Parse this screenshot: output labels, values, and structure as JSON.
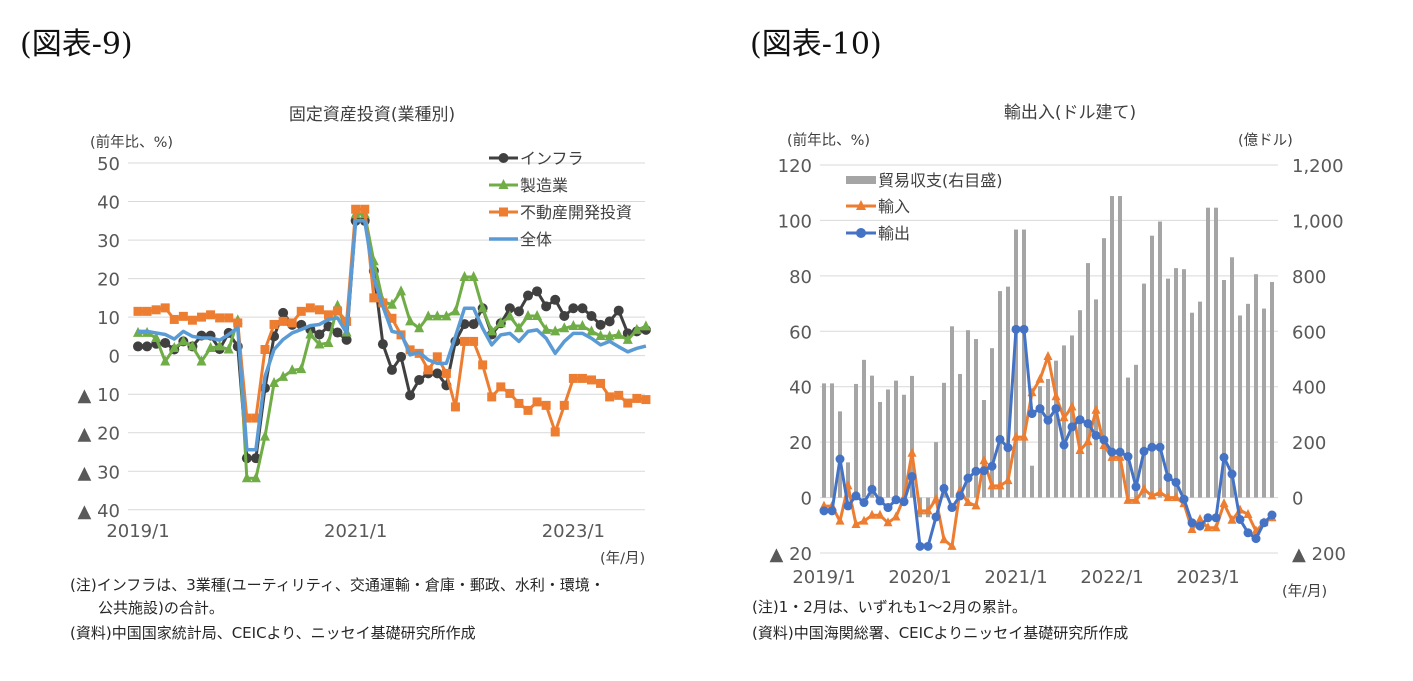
{
  "figures": [
    {
      "label": "(図表-9)",
      "unit_left": "(前年比、%)",
      "x_unit": "(年/月)",
      "notes": [
        "(注)インフラは、3業種(ユーティリティ、交通運輸・倉庫・郵政、水利・環境・",
        "公共施設)の合計。",
        "(資料)中国国家統計局、CEICより、ニッセイ基礎研究所作成"
      ]
    },
    {
      "label": "(図表-10)",
      "unit_left": "(前年比、%)",
      "unit_right": "(億ドル)",
      "x_unit": "(年/月)",
      "notes": [
        "(注)1・2月は、いずれも1～2月の累計。",
        "(資料)中国海関総署、CEICよりニッセイ基礎研究所作成"
      ]
    }
  ],
  "chart_data": [
    {
      "type": "line",
      "title": "固定資産投資(業種別)",
      "ylabel": "(前年比、%)",
      "xlabel": "(年/月)",
      "x_start": "2019/1",
      "x_end": "2023/9",
      "x": [
        "2019/1",
        "2019/2",
        "2019/3",
        "2019/4",
        "2019/5",
        "2019/6",
        "2019/7",
        "2019/8",
        "2019/9",
        "2019/10",
        "2019/11",
        "2019/12",
        "2020/1",
        "2020/2",
        "2020/3",
        "2020/4",
        "2020/5",
        "2020/6",
        "2020/7",
        "2020/8",
        "2020/9",
        "2020/10",
        "2020/11",
        "2020/12",
        "2021/1",
        "2021/2",
        "2021/3",
        "2021/4",
        "2021/5",
        "2021/6",
        "2021/7",
        "2021/8",
        "2021/9",
        "2021/10",
        "2021/11",
        "2021/12",
        "2022/1",
        "2022/2",
        "2022/3",
        "2022/4",
        "2022/5",
        "2022/6",
        "2022/7",
        "2022/8",
        "2022/9",
        "2022/10",
        "2022/11",
        "2022/12",
        "2023/1",
        "2023/2",
        "2023/3",
        "2023/4",
        "2023/5",
        "2023/6",
        "2023/7",
        "2023/8",
        "2023/9"
      ],
      "xtick_labels": [
        "2019/1",
        "2021/1",
        "2023/1"
      ],
      "xtick_index": [
        0,
        24,
        48
      ],
      "ylim": [
        -40,
        50
      ],
      "yticks": [
        50,
        40,
        30,
        20,
        10,
        0,
        -10,
        -20,
        -30,
        -40
      ],
      "ytick_labels": [
        "50",
        "40",
        "30",
        "20",
        "10",
        "0",
        "▲ 10",
        "▲ 20",
        "▲ 30",
        "▲ 40"
      ],
      "grid": true,
      "legend": "top-right",
      "series": [
        {
          "name": "インフラ",
          "color": "#404040",
          "marker": "circle",
          "values": [
            2.4,
            2.4,
            3.1,
            3.3,
            1.6,
            3.7,
            2.4,
            5.2,
            5.2,
            1.7,
            5.9,
            2.4,
            -26.6,
            -26.6,
            -8.4,
            5.0,
            11.1,
            8.0,
            8.0,
            6.8,
            5.5,
            7.6,
            6.0,
            4.1,
            35.0,
            35.0,
            22.0,
            3.0,
            -3.7,
            -0.3,
            -10.3,
            -6.3,
            -4.6,
            -4.6,
            -7.7,
            3.7,
            8.2,
            8.2,
            12.3,
            5.5,
            8.4,
            12.3,
            11.5,
            15.6,
            16.7,
            12.8,
            14.5,
            10.3,
            12.3,
            12.3,
            10.3,
            8.0,
            8.9,
            11.7,
            5.8,
            6.3,
            6.7
          ]
        },
        {
          "name": "製造業",
          "color": "#70AD47",
          "marker": "triangle",
          "values": [
            5.9,
            5.9,
            4.6,
            -1.5,
            2.0,
            3.7,
            2.4,
            -1.5,
            2.0,
            2.4,
            1.6,
            9.2,
            -31.8,
            -31.8,
            -21.0,
            -7.1,
            -5.5,
            -3.8,
            -3.5,
            5.5,
            2.9,
            3.3,
            13.0,
            6.0,
            36.7,
            36.7,
            24.5,
            14.1,
            13.2,
            16.7,
            8.9,
            7.1,
            10.2,
            10.2,
            10.2,
            11.5,
            20.4,
            20.4,
            12.3,
            6.3,
            8.4,
            10.2,
            7.1,
            10.3,
            10.3,
            6.7,
            6.3,
            7.1,
            7.7,
            7.7,
            6.3,
            5.1,
            5.0,
            5.4,
            4.1,
            6.7,
            7.6
          ]
        },
        {
          "name": "不動産開発投資",
          "color": "#ED7D31",
          "marker": "square",
          "values": [
            11.5,
            11.5,
            11.9,
            12.4,
            9.4,
            10.2,
            9.2,
            10.0,
            10.6,
            9.8,
            9.8,
            8.5,
            -16.2,
            -16.2,
            1.6,
            8.1,
            8.9,
            8.5,
            11.5,
            12.4,
            11.9,
            10.6,
            11.6,
            8.9,
            38.0,
            38.0,
            15.0,
            13.7,
            9.7,
            5.4,
            1.5,
            0.6,
            -3.7,
            -0.3,
            -4.6,
            -13.3,
            3.7,
            3.7,
            -2.4,
            -10.7,
            -8.1,
            -9.8,
            -12.4,
            -14.2,
            -12.0,
            -12.9,
            -19.8,
            -12.9,
            -5.9,
            -5.9,
            -6.3,
            -7.2,
            -10.7,
            -10.3,
            -12.3,
            -11.1,
            -11.4
          ]
        },
        {
          "name": "全体",
          "color": "#5B9BD5",
          "marker": "none",
          "values": [
            6.3,
            6.3,
            5.9,
            5.5,
            4.3,
            6.3,
            5.0,
            4.6,
            4.6,
            4.0,
            5.5,
            7.2,
            -24.4,
            -24.4,
            -5.4,
            1.6,
            4.2,
            5.9,
            6.8,
            7.8,
            8.1,
            9.4,
            9.8,
            5.9,
            35.0,
            35.0,
            20.2,
            12.8,
            6.3,
            5.8,
            0.2,
            0.9,
            -1.1,
            -2.0,
            -2.0,
            5.0,
            12.3,
            12.3,
            7.1,
            2.8,
            5.4,
            5.8,
            3.7,
            6.3,
            6.7,
            4.5,
            0.6,
            3.7,
            5.8,
            5.8,
            4.5,
            2.8,
            3.7,
            2.3,
            1.0,
            1.9,
            2.5
          ]
        }
      ]
    },
    {
      "type": "line",
      "title": "輸出入(ドル建て)",
      "ylabel": "(前年比、%)",
      "y2label": "(億ドル)",
      "xlabel": "(年/月)",
      "x_start": "2019/1",
      "x_end": "2023/9",
      "x": [
        "2019/1",
        "2019/2",
        "2019/3",
        "2019/4",
        "2019/5",
        "2019/6",
        "2019/7",
        "2019/8",
        "2019/9",
        "2019/10",
        "2019/11",
        "2019/12",
        "2020/1",
        "2020/2",
        "2020/3",
        "2020/4",
        "2020/5",
        "2020/6",
        "2020/7",
        "2020/8",
        "2020/9",
        "2020/10",
        "2020/11",
        "2020/12",
        "2021/1",
        "2021/2",
        "2021/3",
        "2021/4",
        "2021/5",
        "2021/6",
        "2021/7",
        "2021/8",
        "2021/9",
        "2021/10",
        "2021/11",
        "2021/12",
        "2022/1",
        "2022/2",
        "2022/3",
        "2022/4",
        "2022/5",
        "2022/6",
        "2022/7",
        "2022/8",
        "2022/9",
        "2022/10",
        "2022/11",
        "2022/12",
        "2023/1",
        "2023/2",
        "2023/3",
        "2023/4",
        "2023/5",
        "2023/6",
        "2023/7",
        "2023/8",
        "2023/9"
      ],
      "xtick_labels": [
        "2019/1",
        "2020/1",
        "2021/1",
        "2022/1",
        "2023/1"
      ],
      "xtick_index": [
        0,
        12,
        24,
        36,
        48
      ],
      "ylim": [
        -20,
        120
      ],
      "yticks": [
        120,
        100,
        80,
        60,
        40,
        20,
        0,
        -20
      ],
      "ytick_labels": [
        "120",
        "100",
        "80",
        "60",
        "40",
        "20",
        "0",
        "▲ 20"
      ],
      "y2lim": [
        -200,
        1200
      ],
      "y2ticks": [
        1200,
        1000,
        800,
        600,
        400,
        200,
        0,
        -200
      ],
      "y2tick_labels": [
        "1,200",
        "1,000",
        "800",
        "600",
        "400",
        "200",
        "0",
        "▲ 200"
      ],
      "grid": true,
      "legend": "top-left",
      "series": [
        {
          "name": "貿易収支(右目盛)",
          "kind": "bar",
          "axis": "right",
          "color": "#A5A5A5",
          "values": [
            412,
            412,
            311,
            127,
            410,
            497,
            440,
            345,
            390,
            422,
            371,
            439,
            -71,
            -71,
            200,
            414,
            618,
            446,
            604,
            572,
            352,
            539,
            745,
            761,
            967,
            967,
            115,
            402,
            428,
            494,
            549,
            585,
            676,
            846,
            715,
            936,
            1088,
            1088,
            433,
            479,
            772,
            945,
            996,
            790,
            828,
            824,
            667,
            707,
            1046,
            1046,
            785,
            867,
            657,
            699,
            806,
            682,
            778
          ]
        },
        {
          "name": "輸入",
          "kind": "line",
          "axis": "left",
          "color": "#ED7D31",
          "marker": "triangle",
          "values": [
            -3.1,
            -3.1,
            -8.5,
            4.2,
            -9.7,
            -8.5,
            -6.4,
            -6.4,
            -9.1,
            -7.0,
            0.0,
            16.0,
            -4.8,
            -4.8,
            -0.6,
            -15.2,
            -17.6,
            2.4,
            -1.8,
            -3.0,
            13.3,
            4.2,
            4.2,
            6.1,
            21.8,
            21.8,
            37.8,
            42.7,
            50.9,
            36.4,
            28.8,
            32.7,
            17.0,
            20.2,
            31.5,
            18.8,
            14.5,
            14.5,
            -1.0,
            -1.0,
            3.0,
            0.6,
            1.8,
            0.0,
            0.0,
            -2.2,
            -11.5,
            -7.9,
            -10.9,
            -10.9,
            -2.2,
            -8.2,
            -4.5,
            -6.1,
            -12.1,
            -9.1,
            -7.3
          ]
        },
        {
          "name": "輸出",
          "kind": "line",
          "axis": "left",
          "color": "#4472C4",
          "marker": "circle",
          "values": [
            -4.8,
            -4.8,
            13.9,
            -3.0,
            0.6,
            -1.8,
            3.0,
            -1.2,
            -3.6,
            -0.8,
            -1.5,
            7.6,
            -17.6,
            -17.6,
            -7.0,
            3.3,
            -3.6,
            0.6,
            7.0,
            9.5,
            9.7,
            11.3,
            21.0,
            18.0,
            60.7,
            60.7,
            30.3,
            32.1,
            27.9,
            32.1,
            19.0,
            25.5,
            28.1,
            26.7,
            22.4,
            20.8,
            16.4,
            16.4,
            14.8,
            3.9,
            16.7,
            18.2,
            18.2,
            7.3,
            5.5,
            -0.6,
            -9.1,
            -10.3,
            -7.3,
            -7.3,
            14.5,
            8.5,
            -7.9,
            -12.7,
            -14.8,
            -9.1,
            -6.3
          ]
        }
      ]
    }
  ]
}
